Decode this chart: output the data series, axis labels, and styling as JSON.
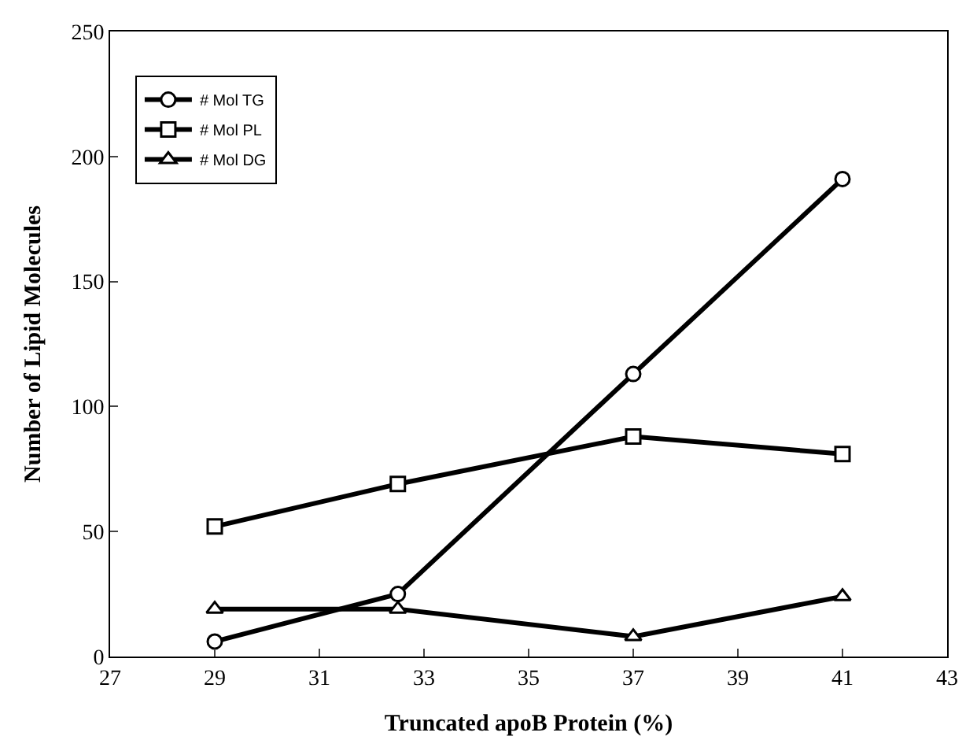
{
  "chart_data": {
    "type": "line",
    "xlabel": "Truncated apoB Protein (%)",
    "ylabel": "Number of Lipid Molecules",
    "xlim": [
      27,
      43
    ],
    "xticks": [
      27,
      29,
      31,
      33,
      35,
      37,
      39,
      41,
      43
    ],
    "ylim": [
      0,
      250
    ],
    "yticks": [
      0,
      50,
      100,
      150,
      200,
      250
    ],
    "grid": false,
    "legend": "top left",
    "line_style": "solid",
    "series": [
      {
        "name": "# Mol TG",
        "color": "#000000",
        "marker": "circle",
        "x": [
          29,
          32.5,
          37,
          41
        ],
        "values": [
          6,
          25,
          113,
          191
        ]
      },
      {
        "name": "# Mol PL",
        "color": "#000000",
        "marker": "square",
        "x": [
          29,
          32.5,
          37,
          41
        ],
        "values": [
          52,
          69,
          88,
          81
        ]
      },
      {
        "name": "# Mol DG",
        "color": "#000000",
        "marker": "triangle",
        "x": [
          29,
          32.5,
          37,
          41
        ],
        "values": [
          19,
          19,
          8,
          24
        ]
      }
    ]
  }
}
